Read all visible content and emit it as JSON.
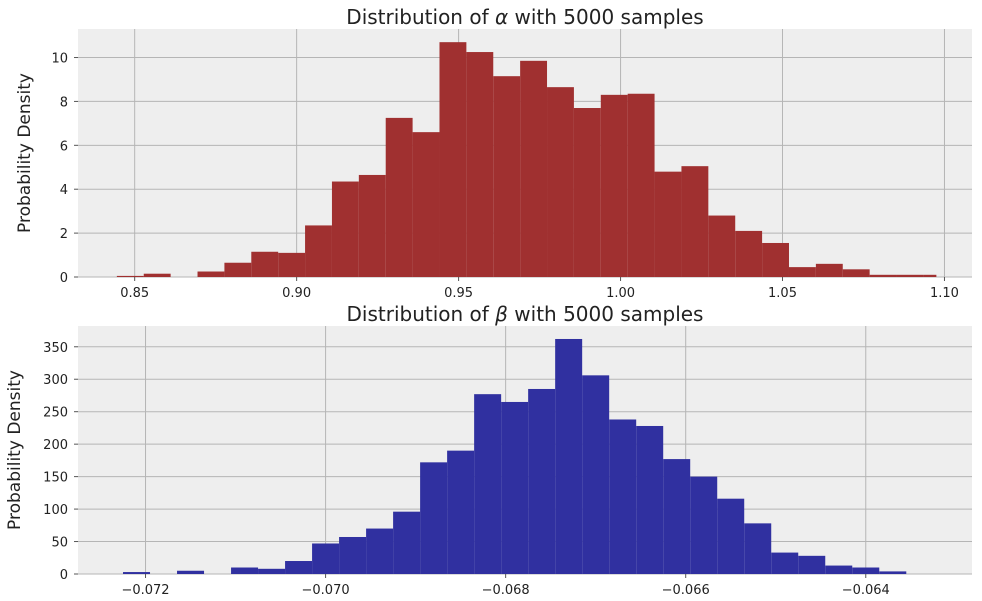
{
  "chart_data": [
    {
      "type": "bar",
      "title_prefix": "Distribution of ",
      "title_symbol": "α",
      "title_suffix": " with 5000 samples",
      "xlabel": "",
      "ylabel": "Probability Density",
      "xlim": [
        0.8325,
        1.1085
      ],
      "ylim": [
        0,
        11.3
      ],
      "xticks": [
        0.85,
        0.9,
        0.95,
        1.0,
        1.05,
        1.1
      ],
      "xtick_labels": [
        "0.85",
        "0.90",
        "0.95",
        "1.00",
        "1.05",
        "1.10"
      ],
      "yticks": [
        0,
        2,
        4,
        6,
        8,
        10
      ],
      "ytick_labels": [
        "0",
        "2",
        "4",
        "6",
        "8",
        "10"
      ],
      "grid": true,
      "bar_color": "#a03030",
      "bin_edges": [
        0.8445,
        0.8528,
        0.8611,
        0.8694,
        0.8777,
        0.886,
        0.8943,
        0.9026,
        0.9109,
        0.9192,
        0.9275,
        0.9358,
        0.9441,
        0.9524,
        0.9607,
        0.969,
        0.9773,
        0.9856,
        0.9939,
        1.0022,
        1.0105,
        1.0188,
        1.0271,
        1.0354,
        1.0437,
        1.052,
        1.0603,
        1.0686,
        1.0769,
        1.0852,
        1.0935,
        1.0975
      ],
      "values": [
        0.05,
        0.15,
        0.0,
        0.25,
        0.65,
        1.15,
        1.1,
        2.35,
        4.35,
        4.65,
        7.25,
        6.6,
        10.7,
        10.25,
        9.15,
        9.85,
        8.65,
        7.7,
        8.3,
        8.35,
        4.8,
        5.05,
        2.8,
        2.1,
        1.55,
        0.45,
        0.6,
        0.35,
        0.1,
        0.1,
        0.1
      ]
    },
    {
      "type": "bar",
      "title_prefix": "Distribution of ",
      "title_symbol": "β",
      "title_suffix": " with 5000 samples",
      "xlabel": "",
      "ylabel": "Probability Density",
      "xlim": [
        -0.07275,
        -0.06282
      ],
      "ylim": [
        0,
        382
      ],
      "xticks": [
        -0.072,
        -0.07,
        -0.068,
        -0.066,
        -0.064
      ],
      "xtick_labels": [
        "−0.072",
        "−0.070",
        "−0.068",
        "−0.066",
        "−0.064"
      ],
      "yticks": [
        0,
        50,
        100,
        150,
        200,
        250,
        300,
        350
      ],
      "ytick_labels": [
        "0",
        "50",
        "100",
        "150",
        "200",
        "250",
        "300",
        "350"
      ],
      "grid": true,
      "bar_color": "#3030a0",
      "bin_edges": [
        -0.07225,
        -0.07195,
        -0.07165,
        -0.07135,
        -0.07105,
        -0.07075,
        -0.07045,
        -0.07015,
        -0.06985,
        -0.06955,
        -0.06925,
        -0.06895,
        -0.06865,
        -0.06835,
        -0.06805,
        -0.06775,
        -0.06745,
        -0.06715,
        -0.06685,
        -0.06655,
        -0.06625,
        -0.06595,
        -0.06565,
        -0.06535,
        -0.06505,
        -0.06475,
        -0.06445,
        -0.06415,
        -0.06385,
        -0.06355,
        -0.06325
      ],
      "values": [
        3,
        0,
        5,
        0,
        10,
        8,
        20,
        47,
        57,
        70,
        96,
        172,
        190,
        277,
        265,
        285,
        362,
        306,
        238,
        228,
        177,
        150,
        116,
        78,
        33,
        28,
        13,
        10,
        4,
        0
      ]
    }
  ]
}
